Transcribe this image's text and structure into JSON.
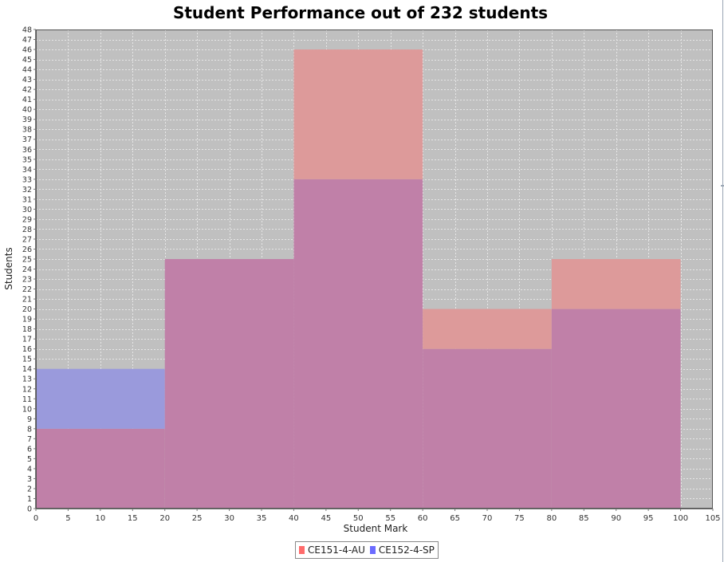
{
  "chart_data": {
    "type": "bar",
    "title": "Student Performance out of 232 students",
    "xlabel": "Student Mark",
    "ylabel": "Students",
    "xlim": [
      0,
      105
    ],
    "ylim": [
      0,
      48
    ],
    "x_tick_step": 5,
    "y_tick_step": 1,
    "grid": true,
    "legend_position": "bottom",
    "bins": [
      [
        0,
        20
      ],
      [
        20,
        40
      ],
      [
        40,
        60
      ],
      [
        60,
        80
      ],
      [
        80,
        100
      ]
    ],
    "series": [
      {
        "name": "CE151-4-AU",
        "values": [
          8,
          25,
          46,
          20,
          25
        ],
        "color": "#ff7070"
      },
      {
        "name": "CE152-4-SP",
        "values": [
          14,
          25,
          33,
          16,
          20
        ],
        "color": "#7070ff"
      }
    ],
    "colors": {
      "plot_background": "#c0c0c0",
      "overlap": "#c080a8",
      "au_visible": "#dd9a9a",
      "sp_visible": "#9a9adc",
      "legend_au": "#ff6b6b",
      "legend_sp": "#6b6bff"
    }
  }
}
